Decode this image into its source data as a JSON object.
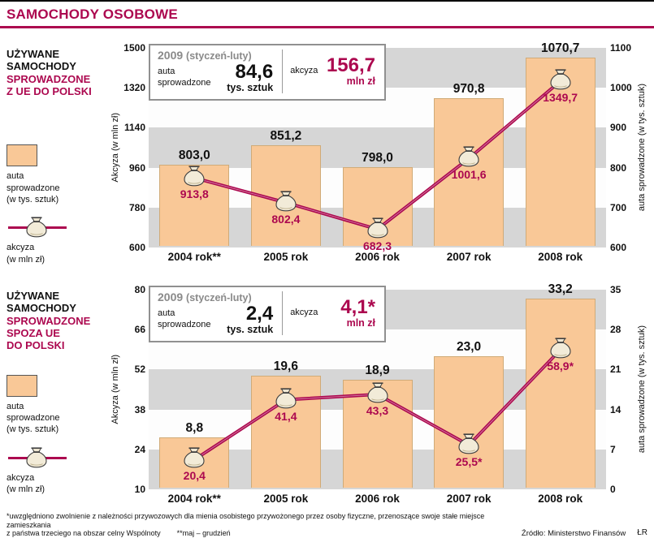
{
  "page": {
    "title": "SAMOCHODY OSOBOWE",
    "colors": {
      "accent": "#ac084f",
      "bar_fill": "#f9c897",
      "stripe": "#d6d6d6"
    }
  },
  "chart_data": [
    {
      "type": "bar+line",
      "sidebar": {
        "black_lines": [
          "UŻYWANE",
          "SAMOCHODY"
        ],
        "accent_lines": [
          "SPROWADZONE",
          "Z UE DO POLSKI"
        ]
      },
      "legend": {
        "bar_label_lines": [
          "auta",
          "sprowadzone",
          "(w tys. sztuk)"
        ],
        "line_label_lines": [
          "akcyza",
          "(w mln zł)"
        ]
      },
      "inset": {
        "year": "2009",
        "period": "(styczeń-luty)",
        "left_label_l1": "auta",
        "left_label_l2": "sprowadzone",
        "left_value": "84,6",
        "left_unit": "tys. sztuk",
        "right_label": "akcyza",
        "right_value": "156,7",
        "right_unit": "mln zł"
      },
      "left_axis": {
        "label": "Akcyza (w mln zł)",
        "min": 600,
        "max": 1500,
        "ticks": [
          1500,
          1320,
          1140,
          960,
          780,
          600
        ]
      },
      "right_axis": {
        "label": "auta sprowadzone (w tys. sztuk)",
        "min": 600,
        "max": 1100,
        "ticks": [
          1100,
          1000,
          900,
          800,
          700,
          600
        ]
      },
      "categories": [
        "2004 rok**",
        "2005 rok",
        "2006 rok",
        "2007 rok",
        "2008 rok"
      ],
      "bar_series": {
        "name": "auta sprowadzone (w tys. sztuk)",
        "axis": "right",
        "values": [
          803.0,
          851.2,
          798.0,
          970.8,
          1070.7
        ],
        "labels": [
          "803,0",
          "851,2",
          "798,0",
          "970,8",
          "1070,7"
        ]
      },
      "line_series": {
        "name": "akcyza (w mln zł)",
        "axis": "left",
        "values": [
          913.8,
          802.4,
          682.3,
          1001.6,
          1349.7
        ],
        "labels": [
          "913,8",
          "802,4",
          "682,3",
          "1001,6",
          "1349,7"
        ]
      }
    },
    {
      "type": "bar+line",
      "sidebar": {
        "black_lines": [
          "UŻYWANE",
          "SAMOCHODY"
        ],
        "accent_lines": [
          "SPROWADZONE",
          "SPOZA UE",
          "DO POLSKI"
        ]
      },
      "legend": {
        "bar_label_lines": [
          "auta",
          "sprowadzone",
          "(w tys. sztuk)"
        ],
        "line_label_lines": [
          "akcyza",
          "(w mln zł)"
        ]
      },
      "inset": {
        "year": "2009",
        "period": "(styczeń-luty)",
        "left_label_l1": "auta",
        "left_label_l2": "sprowadzone",
        "left_value": "2,4",
        "left_unit": "tys. sztuk",
        "right_label": "akcyza",
        "right_value": "4,1*",
        "right_unit": "mln zł"
      },
      "left_axis": {
        "label": "Akcyza (w mln zł)",
        "min": 10,
        "max": 80,
        "ticks": [
          80,
          66,
          52,
          38,
          24,
          10
        ]
      },
      "right_axis": {
        "label": "auta sprowadzone (w tys. sztuk)",
        "min": 0,
        "max": 35,
        "ticks": [
          35,
          28,
          21,
          14,
          7,
          0
        ]
      },
      "categories": [
        "2004 rok**",
        "2005 rok",
        "2006 rok",
        "2007 rok",
        "2008 rok"
      ],
      "bar_series": {
        "name": "auta sprowadzone (w tys. sztuk)",
        "axis": "right",
        "values": [
          8.8,
          19.6,
          18.9,
          23.0,
          33.2
        ],
        "labels": [
          "8,8",
          "19,6",
          "18,9",
          "23,0",
          "33,2"
        ]
      },
      "line_series": {
        "name": "akcyza (w mln zł)",
        "axis": "left",
        "values": [
          20.4,
          41.4,
          43.3,
          25.5,
          58.9
        ],
        "labels": [
          "20,4",
          "41,4",
          "43,3",
          "25,5*",
          "58,9*"
        ]
      }
    }
  ],
  "footer": {
    "note1": "*uwzględniono zwolnienie z należności przywozowych dla mienia osobistego przywożonego przez osoby fizyczne, przenoszące swoje stałe miejsce zamieszkania",
    "note2": "z państwa trzeciego na obszar celny Wspólnoty",
    "note3": "**maj – grudzień",
    "source": "Źródło: Ministerstwo Finansów",
    "initials": "ŁR"
  }
}
